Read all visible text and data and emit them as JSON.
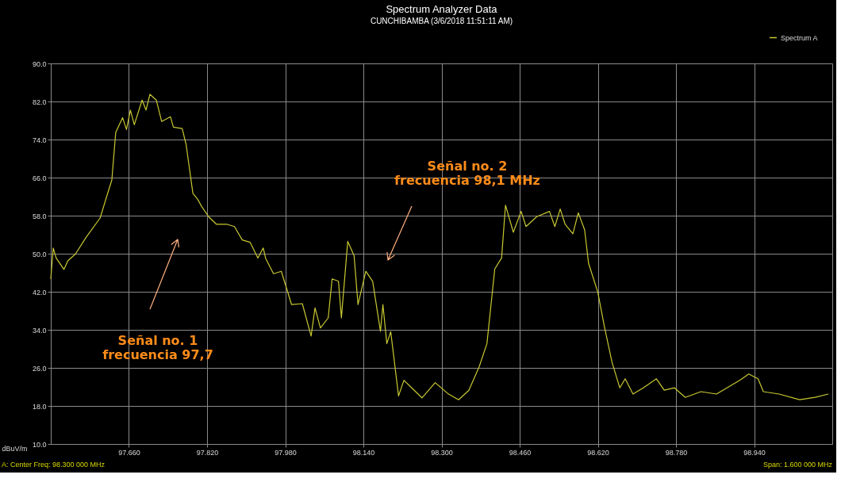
{
  "chart_data": {
    "type": "line",
    "title": "Spectrum Analyzer Data",
    "subtitle": "CUNCHIBAMBA  (3/6/2018 11:51:11 AM)",
    "ylabel": "dBuV/m",
    "xlim": [
      97.5,
      99.1
    ],
    "ylim": [
      10,
      90
    ],
    "xticks": [
      {
        "value": 97.66,
        "label": "97.660"
      },
      {
        "value": 97.82,
        "label": "97.820"
      },
      {
        "value": 97.98,
        "label": "97.980"
      },
      {
        "value": 98.14,
        "label": "98.140"
      },
      {
        "value": 98.3,
        "label": "98.300"
      },
      {
        "value": 98.46,
        "label": "98.460"
      },
      {
        "value": 98.62,
        "label": "98.620"
      },
      {
        "value": 98.78,
        "label": "98.780"
      },
      {
        "value": 98.94,
        "label": "98.940"
      }
    ],
    "yticks": [
      {
        "value": 10,
        "label": "10.0"
      },
      {
        "value": 18,
        "label": "18.0"
      },
      {
        "value": 26,
        "label": "26.0"
      },
      {
        "value": 34,
        "label": "34.0"
      },
      {
        "value": 42,
        "label": "42.0"
      },
      {
        "value": 50,
        "label": "50.0"
      },
      {
        "value": 58,
        "label": "58.0"
      },
      {
        "value": 66,
        "label": "66.0"
      },
      {
        "value": 74,
        "label": "74.0"
      },
      {
        "value": 82,
        "label": "82.0"
      },
      {
        "value": 90,
        "label": "90.0"
      }
    ],
    "grid": true,
    "legend": "top right",
    "line_style": "solid",
    "marker": "none",
    "series": [
      {
        "name": "Spectrum A",
        "color": "#c8c832",
        "x": [
          97.5,
          97.505,
          97.511,
          97.527,
          97.535,
          97.551,
          97.572,
          97.601,
          97.615,
          97.625,
          97.633,
          97.647,
          97.655,
          97.663,
          97.671,
          97.687,
          97.695,
          97.703,
          97.716,
          97.727,
          97.745,
          97.751,
          97.769,
          97.777,
          97.791,
          97.801,
          97.809,
          97.823,
          97.839,
          97.86,
          97.876,
          97.892,
          97.908,
          97.924,
          97.935,
          97.94,
          97.956,
          97.972,
          97.993,
          98.015,
          98.033,
          98.041,
          98.052,
          98.068,
          98.076,
          98.089,
          98.095,
          98.108,
          98.121,
          98.129,
          98.145,
          98.159,
          98.175,
          98.18,
          98.188,
          98.196,
          98.212,
          98.223,
          98.239,
          98.26,
          98.287,
          98.313,
          98.335,
          98.356,
          98.377,
          98.393,
          98.409,
          98.423,
          98.431,
          98.447,
          98.463,
          98.473,
          98.495,
          98.521,
          98.532,
          98.543,
          98.553,
          98.569,
          98.58,
          98.593,
          98.601,
          98.62,
          98.633,
          98.649,
          98.665,
          98.676,
          98.692,
          98.713,
          98.74,
          98.756,
          98.777,
          98.799,
          98.831,
          98.863,
          98.889,
          98.911,
          98.929,
          98.948,
          98.959,
          98.991,
          99.033,
          99.065,
          99.092
        ],
        "values": [
          44.7,
          51.2,
          49.1,
          46.7,
          48.5,
          50,
          53.4,
          57.5,
          62.2,
          65.5,
          75.5,
          78.6,
          76.1,
          80.2,
          77.1,
          82.3,
          80.2,
          83.5,
          82.3,
          77.8,
          78.8,
          76.6,
          76.3,
          73,
          62.7,
          61.4,
          59.9,
          57.8,
          56.2,
          56.2,
          55.7,
          52.9,
          52.4,
          49.1,
          51.2,
          49,
          45.8,
          46.3,
          39.3,
          39.5,
          32.7,
          38.6,
          34.4,
          36.5,
          44.7,
          44.2,
          36.5,
          52.6,
          49.6,
          39.3,
          46.3,
          44.2,
          33.7,
          39.3,
          31.1,
          33.6,
          20.1,
          23.4,
          21.8,
          19.7,
          22.9,
          20.6,
          19.3,
          21.3,
          26.2,
          31.1,
          46.8,
          49.1,
          60.2,
          54.5,
          58.9,
          55.7,
          57.8,
          58.9,
          55.7,
          59.4,
          56.2,
          54.2,
          58.6,
          55,
          48,
          41.9,
          34.9,
          27.2,
          21.8,
          23.7,
          20.5,
          21.8,
          23.7,
          21.3,
          21.8,
          19.8,
          21,
          20.5,
          22.1,
          23.4,
          24.7,
          23.7,
          21,
          20.5,
          19.3,
          19.8,
          20.5
        ]
      }
    ],
    "annotations": [
      "Señal no. 1\nfrecuencia 97,7",
      "Señal no. 2\nfrecuencia 98,1 MHz",
      "A: Center Freq: 98.300 000 MHz",
      "Span: 1.600 000 MHz"
    ]
  }
}
